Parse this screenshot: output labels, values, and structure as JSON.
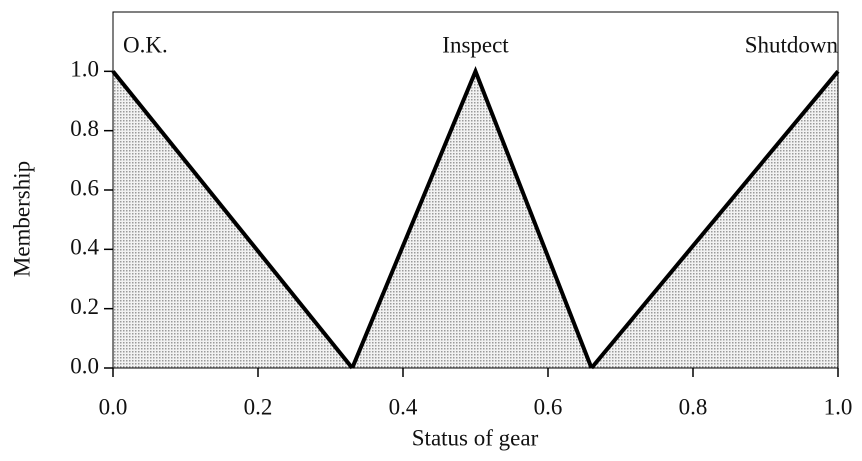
{
  "chart_data": {
    "type": "line",
    "x_label": "Status of gear",
    "y_label": "Membership",
    "xlim": [
      0,
      1
    ],
    "ylim": [
      0,
      1.2
    ],
    "xticks": [
      {
        "value": 0,
        "label": "0.0"
      },
      0.2,
      0.4,
      0.6,
      0.8,
      {
        "value": 1,
        "label": "1.0"
      }
    ],
    "yticks": [
      {
        "value": 0,
        "label": "0.0"
      },
      0.2,
      0.4,
      0.6,
      0.8,
      {
        "value": 1,
        "label": "1.0"
      }
    ],
    "fill": "#cfcfcf",
    "series": [
      {
        "name": "O.K.",
        "color": "#000000",
        "x": [
          0,
          0.33
        ],
        "values": [
          1,
          0
        ]
      },
      {
        "name": "Inspect",
        "color": "#000000",
        "x": [
          0.33,
          0.5,
          0.66
        ],
        "values": [
          0,
          1,
          0
        ]
      },
      {
        "name": "Shutdown",
        "color": "#000000",
        "x": [
          0.66,
          1
        ],
        "values": [
          0,
          1
        ]
      }
    ]
  }
}
